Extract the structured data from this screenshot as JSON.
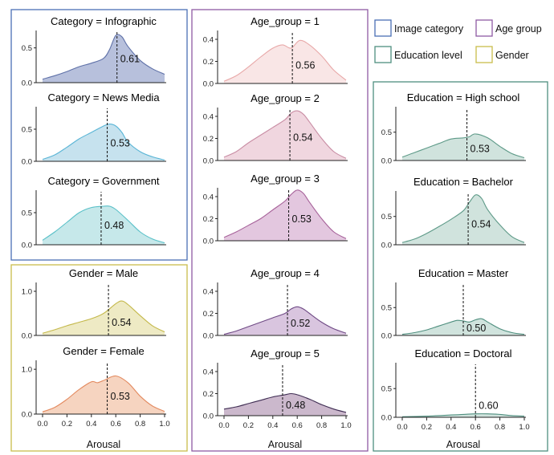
{
  "legend": [
    {
      "label": "Image category",
      "color": "#4a6fb5"
    },
    {
      "label": "Age group",
      "color": "#8e5aa3"
    },
    {
      "label": "Education level",
      "color": "#4f8f7f"
    },
    {
      "label": "Gender",
      "color": "#c9bd4a"
    }
  ],
  "x_ticks": [
    "0.0",
    "0.2",
    "0.4",
    "0.6",
    "0.8",
    "1.0"
  ],
  "x_axis_label": "Arousal",
  "chart_data": [
    {
      "type": "area",
      "title": "Category = Infographic",
      "group": "Image category",
      "fill": "#b7c0dc",
      "stroke": "#5f71a8",
      "ylim": [
        0,
        0.75
      ],
      "y_ticks": [
        0,
        0.5
      ],
      "mean": 0.61,
      "mean_label": "0.61",
      "x": [
        0,
        0.1,
        0.2,
        0.3,
        0.4,
        0.5,
        0.55,
        0.6,
        0.65,
        0.7,
        0.8,
        0.9,
        1.0
      ],
      "y": [
        0.05,
        0.1,
        0.16,
        0.23,
        0.28,
        0.35,
        0.48,
        0.68,
        0.66,
        0.52,
        0.32,
        0.2,
        0.12
      ]
    },
    {
      "type": "area",
      "title": "Category = News Media",
      "group": "Image category",
      "fill": "#c6e2ee",
      "stroke": "#5ab5d6",
      "ylim": [
        0,
        0.85
      ],
      "y_ticks": [
        0,
        0.5
      ],
      "mean": 0.53,
      "mean_label": "0.53",
      "x": [
        0,
        0.1,
        0.2,
        0.3,
        0.4,
        0.5,
        0.55,
        0.6,
        0.65,
        0.7,
        0.8,
        0.9,
        1.0
      ],
      "y": [
        0.03,
        0.1,
        0.22,
        0.35,
        0.45,
        0.55,
        0.58,
        0.55,
        0.45,
        0.3,
        0.15,
        0.07,
        0.02
      ]
    },
    {
      "type": "area",
      "title": "Category = Government",
      "group": "Image category",
      "fill": "#c6e8ea",
      "stroke": "#59c0c8",
      "ylim": [
        0,
        0.85
      ],
      "y_ticks": [
        0,
        0.5
      ],
      "mean": 0.48,
      "mean_label": "0.48",
      "x": [
        0,
        0.1,
        0.2,
        0.3,
        0.4,
        0.5,
        0.55,
        0.6,
        0.7,
        0.8,
        0.9,
        1.0
      ],
      "y": [
        0.07,
        0.2,
        0.35,
        0.5,
        0.58,
        0.6,
        0.6,
        0.55,
        0.38,
        0.2,
        0.09,
        0.03
      ]
    },
    {
      "type": "area",
      "title": "Gender = Male",
      "group": "Gender",
      "fill": "#eeeac4",
      "stroke": "#c4b84a",
      "ylim": [
        0,
        1.2
      ],
      "y_ticks": [
        0,
        1.0
      ],
      "mean": 0.54,
      "mean_label": "0.54",
      "x": [
        0,
        0.1,
        0.2,
        0.3,
        0.4,
        0.5,
        0.6,
        0.65,
        0.7,
        0.8,
        0.9,
        1.0
      ],
      "y": [
        0.05,
        0.13,
        0.22,
        0.3,
        0.38,
        0.5,
        0.72,
        0.78,
        0.7,
        0.45,
        0.22,
        0.08
      ]
    },
    {
      "type": "area",
      "title": "Gender = Female",
      "group": "Gender",
      "fill": "#f6d4c0",
      "stroke": "#e38a5f",
      "ylim": [
        0,
        1.2
      ],
      "y_ticks": [
        0,
        1.0
      ],
      "mean": 0.53,
      "mean_label": "0.53",
      "x": [
        0,
        0.1,
        0.2,
        0.3,
        0.4,
        0.45,
        0.5,
        0.6,
        0.7,
        0.8,
        0.9,
        1.0
      ],
      "y": [
        0.05,
        0.15,
        0.33,
        0.55,
        0.72,
        0.7,
        0.75,
        0.85,
        0.7,
        0.4,
        0.18,
        0.06
      ]
    },
    {
      "type": "area",
      "title": "Age_group = 1",
      "group": "Age group",
      "fill": "#f9e6e6",
      "stroke": "#e8a8a8",
      "ylim": [
        0,
        0.48
      ],
      "y_ticks": [
        0,
        0.2,
        0.4
      ],
      "mean": 0.56,
      "mean_label": "0.56",
      "x": [
        0,
        0.1,
        0.2,
        0.3,
        0.4,
        0.48,
        0.55,
        0.62,
        0.7,
        0.8,
        0.9,
        1.0
      ],
      "y": [
        0.02,
        0.07,
        0.15,
        0.24,
        0.32,
        0.35,
        0.32,
        0.39,
        0.35,
        0.25,
        0.12,
        0.03
      ]
    },
    {
      "type": "area",
      "title": "Age_group = 2",
      "group": "Age group",
      "fill": "#f0d6df",
      "stroke": "#c98da4",
      "ylim": [
        0,
        0.48
      ],
      "y_ticks": [
        0,
        0.2,
        0.4
      ],
      "mean": 0.54,
      "mean_label": "0.54",
      "x": [
        0,
        0.1,
        0.2,
        0.3,
        0.4,
        0.5,
        0.55,
        0.6,
        0.65,
        0.7,
        0.8,
        0.9,
        1.0
      ],
      "y": [
        0.03,
        0.08,
        0.16,
        0.23,
        0.3,
        0.37,
        0.43,
        0.45,
        0.42,
        0.35,
        0.2,
        0.08,
        0.02
      ]
    },
    {
      "type": "area",
      "title": "Age_group = 3",
      "group": "Age group",
      "fill": "#e3c7df",
      "stroke": "#a7629a",
      "ylim": [
        0,
        0.48
      ],
      "y_ticks": [
        0,
        0.2,
        0.4
      ],
      "mean": 0.53,
      "mean_label": "0.53",
      "x": [
        0,
        0.1,
        0.2,
        0.3,
        0.4,
        0.5,
        0.55,
        0.6,
        0.65,
        0.7,
        0.8,
        0.9,
        1.0
      ],
      "y": [
        0.03,
        0.08,
        0.14,
        0.2,
        0.28,
        0.36,
        0.42,
        0.46,
        0.43,
        0.35,
        0.2,
        0.08,
        0.02
      ]
    },
    {
      "type": "area",
      "title": "Age_group = 4",
      "group": "Age group",
      "fill": "#d9c5df",
      "stroke": "#6f4a85",
      "ylim": [
        0,
        0.48
      ],
      "y_ticks": [
        0,
        0.2,
        0.4
      ],
      "mean": 0.52,
      "mean_label": "0.52",
      "x": [
        0,
        0.1,
        0.2,
        0.3,
        0.4,
        0.5,
        0.55,
        0.6,
        0.65,
        0.7,
        0.8,
        0.9,
        1.0
      ],
      "y": [
        0.01,
        0.04,
        0.08,
        0.12,
        0.16,
        0.2,
        0.24,
        0.26,
        0.24,
        0.2,
        0.12,
        0.06,
        0.02
      ]
    },
    {
      "type": "area",
      "title": "Age_group = 5",
      "group": "Age group",
      "fill": "#cbb8cc",
      "stroke": "#3e2c52",
      "ylim": [
        0,
        0.48
      ],
      "y_ticks": [
        0,
        0.2,
        0.4
      ],
      "mean": 0.48,
      "mean_label": "0.48",
      "x": [
        0,
        0.1,
        0.2,
        0.3,
        0.4,
        0.5,
        0.55,
        0.6,
        0.7,
        0.8,
        0.9,
        1.0
      ],
      "y": [
        0.06,
        0.08,
        0.11,
        0.14,
        0.17,
        0.19,
        0.2,
        0.19,
        0.15,
        0.1,
        0.06,
        0.03
      ]
    },
    {
      "type": "area",
      "title": "Education = High school",
      "group": "Education level",
      "fill": "#d0e3dd",
      "stroke": "#5e9a88",
      "ylim": [
        0,
        0.95
      ],
      "y_ticks": [
        0,
        0.5
      ],
      "mean": 0.53,
      "mean_label": "0.53",
      "x": [
        0,
        0.1,
        0.2,
        0.3,
        0.4,
        0.5,
        0.55,
        0.6,
        0.7,
        0.8,
        0.9,
        1.0
      ],
      "y": [
        0.06,
        0.14,
        0.22,
        0.3,
        0.38,
        0.4,
        0.42,
        0.47,
        0.4,
        0.25,
        0.12,
        0.05
      ]
    },
    {
      "type": "area",
      "title": "Education = Bachelor",
      "group": "Education level",
      "fill": "#d0e3dd",
      "stroke": "#5e9a88",
      "ylim": [
        0,
        0.95
      ],
      "y_ticks": [
        0,
        0.5
      ],
      "mean": 0.54,
      "mean_label": "0.54",
      "x": [
        0,
        0.1,
        0.2,
        0.3,
        0.4,
        0.5,
        0.55,
        0.6,
        0.65,
        0.7,
        0.8,
        0.9,
        1.0
      ],
      "y": [
        0.04,
        0.1,
        0.2,
        0.32,
        0.45,
        0.6,
        0.75,
        0.88,
        0.82,
        0.62,
        0.35,
        0.14,
        0.04
      ]
    },
    {
      "type": "area",
      "title": "Education = Master",
      "group": "Education level",
      "fill": "#d0e3dd",
      "stroke": "#4f8f7f",
      "ylim": [
        0,
        0.95
      ],
      "y_ticks": [
        0,
        0.5
      ],
      "mean": 0.5,
      "mean_label": "0.50",
      "x": [
        0,
        0.1,
        0.2,
        0.3,
        0.4,
        0.45,
        0.5,
        0.55,
        0.6,
        0.65,
        0.7,
        0.8,
        0.9,
        1.0
      ],
      "y": [
        0.02,
        0.05,
        0.1,
        0.17,
        0.24,
        0.27,
        0.26,
        0.24,
        0.28,
        0.3,
        0.24,
        0.12,
        0.05,
        0.02
      ]
    },
    {
      "type": "area",
      "title": "Education = Doctoral",
      "group": "Education level",
      "fill": "#d0e3dd",
      "stroke": "#4f8f7f",
      "ylim": [
        0,
        0.95
      ],
      "y_ticks": [
        0,
        0.5
      ],
      "mean": 0.6,
      "mean_label": "0.60",
      "x": [
        0,
        0.2,
        0.4,
        0.5,
        0.6,
        0.7,
        0.8,
        0.9,
        1.0
      ],
      "y": [
        0.01,
        0.02,
        0.04,
        0.05,
        0.06,
        0.06,
        0.05,
        0.03,
        0.02
      ]
    }
  ]
}
